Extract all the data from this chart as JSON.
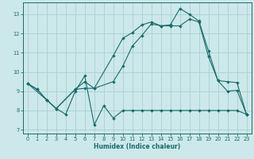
{
  "bg_color": "#cce8ea",
  "grid_color": "#aacfd2",
  "line_color": "#1a6b6b",
  "xlabel": "Humidex (Indice chaleur)",
  "xlim": [
    -0.5,
    23.5
  ],
  "ylim": [
    6.8,
    13.6
  ],
  "yticks": [
    7,
    8,
    9,
    10,
    11,
    12,
    13
  ],
  "xticks": [
    0,
    1,
    2,
    3,
    4,
    5,
    6,
    7,
    8,
    9,
    10,
    11,
    12,
    13,
    14,
    15,
    16,
    17,
    18,
    19,
    20,
    21,
    22,
    23
  ],
  "line1_x": [
    0,
    1,
    2,
    3,
    4,
    5,
    6,
    7,
    8,
    9,
    10,
    11,
    12,
    13,
    14,
    15,
    16,
    17,
    18,
    19,
    20,
    21,
    22,
    23
  ],
  "line1_y": [
    9.4,
    9.1,
    8.55,
    8.1,
    7.8,
    9.0,
    9.8,
    7.25,
    8.25,
    7.6,
    8.0,
    8.0,
    8.0,
    8.0,
    8.0,
    8.0,
    8.0,
    8.0,
    8.0,
    8.0,
    8.0,
    8.0,
    8.0,
    7.8
  ],
  "line2_x": [
    0,
    1,
    2,
    3,
    5,
    6,
    7,
    9,
    10,
    11,
    12,
    13,
    14,
    15,
    16,
    17,
    18,
    19,
    20,
    21,
    22,
    23
  ],
  "line2_y": [
    9.4,
    9.1,
    8.55,
    8.1,
    9.1,
    9.15,
    9.15,
    10.85,
    11.75,
    12.05,
    12.45,
    12.6,
    12.4,
    12.45,
    13.3,
    13.0,
    12.65,
    11.1,
    9.55,
    9.0,
    9.05,
    7.8
  ],
  "line3_x": [
    0,
    2,
    3,
    5,
    6,
    7,
    9,
    10,
    11,
    12,
    13,
    14,
    15,
    16,
    17,
    18,
    19,
    20,
    21,
    22,
    23
  ],
  "line3_y": [
    9.4,
    8.55,
    8.1,
    9.1,
    9.5,
    9.15,
    9.5,
    10.3,
    11.35,
    11.9,
    12.5,
    12.4,
    12.4,
    12.4,
    12.75,
    12.6,
    10.8,
    9.55,
    9.5,
    9.45,
    7.8
  ]
}
